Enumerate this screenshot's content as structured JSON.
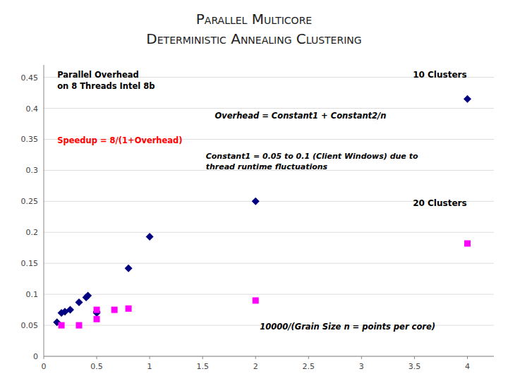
{
  "chart_data": {
    "type": "scatter",
    "title": "Parallel Multicore",
    "subtitle": "Deterministic Annealing Clustering",
    "xlim": [
      0,
      4.25
    ],
    "ylim": [
      0,
      0.47
    ],
    "xticks": [
      0,
      0.5,
      1.0,
      1.5,
      2.0,
      2.5,
      3.0,
      3.5,
      4.0
    ],
    "yticks": [
      0,
      0.05,
      0.1,
      0.15,
      0.2,
      0.25,
      0.3,
      0.35,
      0.4,
      0.45
    ],
    "grid": true,
    "series": [
      {
        "color": "#000080",
        "marker": "diamond",
        "x": [
          0.125,
          0.167,
          0.2,
          0.25,
          0.333,
          0.4,
          0.417,
          0.5,
          0.5,
          0.8,
          1.0,
          2.0,
          4.0
        ],
        "values": [
          0.055,
          0.07,
          0.072,
          0.075,
          0.087,
          0.095,
          0.098,
          0.07,
          0.072,
          0.142,
          0.193,
          0.25,
          0.415
        ]
      },
      {
        "color": "#FF00FF",
        "marker": "square",
        "x": [
          0.167,
          0.333,
          0.5,
          0.5,
          0.667,
          0.8,
          2.0,
          4.0
        ],
        "values": [
          0.05,
          0.05,
          0.06,
          0.075,
          0.075,
          0.077,
          0.09,
          0.182
        ]
      }
    ],
    "annotations": [
      "Parallel Overhead\non 8 Threads Intel 8b",
      "Speedup = 8/(1+Overhead)",
      "Overhead = Constant1 + Constant2/n",
      "Constant1 = 0.05 to 0.1 (Client Windows) due to\nthread runtime fluctuations",
      "10 Clusters",
      "20 Clusters",
      "10000/(Grain Size n = points per core)"
    ]
  }
}
